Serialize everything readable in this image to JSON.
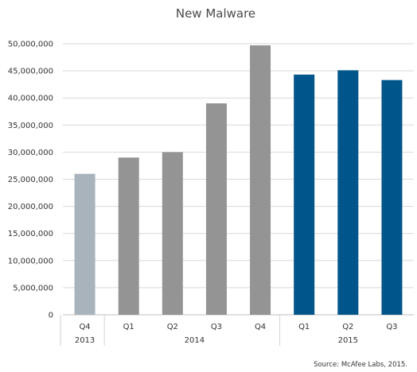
{
  "chart_data": {
    "type": "bar",
    "title": "New Malware",
    "xlabel": "",
    "ylabel": "",
    "ylim": [
      0,
      50000000
    ],
    "yticks": [
      0,
      5000000,
      10000000,
      15000000,
      20000000,
      25000000,
      30000000,
      35000000,
      40000000,
      45000000,
      50000000
    ],
    "ytick_labels": [
      "0",
      "5,000,000",
      "10,000,000",
      "15,000,000",
      "20,000,000",
      "25,000,000",
      "30,000,000",
      "35,000,000",
      "40,000,000",
      "45,000,000",
      "50,000,000"
    ],
    "grid": true,
    "legend": "none",
    "categories": [
      "Q4",
      "Q1",
      "Q2",
      "Q3",
      "Q4",
      "Q1",
      "Q2",
      "Q3"
    ],
    "values": [
      26000000,
      29000000,
      30000000,
      39000000,
      49700000,
      44300000,
      45100000,
      43300000
    ],
    "bar_colors": [
      "#a9b3bc",
      "#949494",
      "#949494",
      "#949494",
      "#949494",
      "#00558a",
      "#00558a",
      "#00558a"
    ],
    "year_groups": [
      {
        "label": "2013",
        "count": 1
      },
      {
        "label": "2014",
        "count": 4
      },
      {
        "label": "2015",
        "count": 3
      }
    ],
    "source": "Source: McAfee Labs, 2015."
  }
}
